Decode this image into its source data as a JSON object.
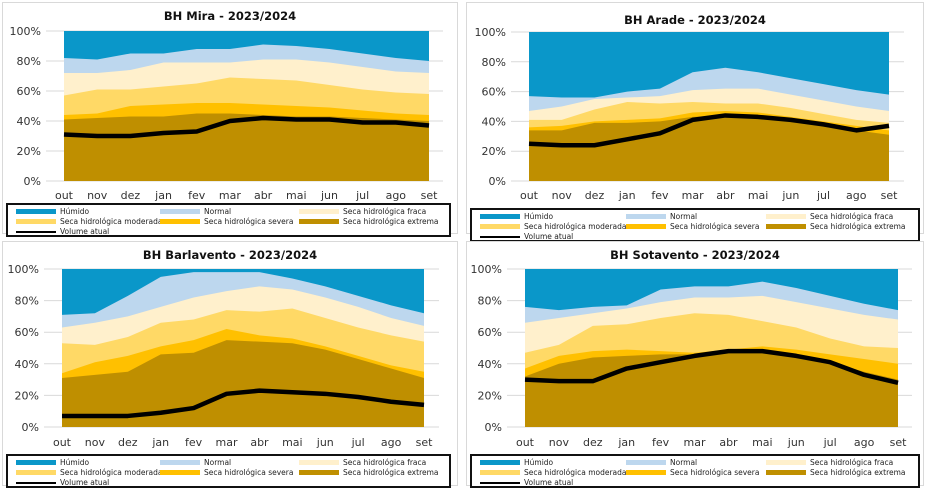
{
  "colors": {
    "humido": "#0A97C9",
    "normal": "#BDD7EE",
    "fraca": "#FFF0CC",
    "moderada": "#FFD966",
    "severa": "#FFC000",
    "extrema": "#BF8F00",
    "volume": "#000000",
    "grid": "#D9D9D9"
  },
  "legend": {
    "humido": "Húmido",
    "normal": "Normal",
    "fraca": "Seca hidrológica fraca",
    "moderada": "Seca hidrológica moderada",
    "severa": "Seca hidrológica severa",
    "extrema": "Seca hidrológica extrema",
    "volume": "Volume atual"
  },
  "chart_data": [
    {
      "type": "area",
      "title": "BH Mira - 2023/2024",
      "categories": [
        "out",
        "nov",
        "dez",
        "jan",
        "fev",
        "mar",
        "abr",
        "mai",
        "jun",
        "jul",
        "ago",
        "set"
      ],
      "yticks": [
        "0%",
        "20%",
        "40%",
        "60%",
        "80%",
        "100%"
      ],
      "ylim": [
        0,
        100
      ],
      "grid": true,
      "legend_position": "bottom",
      "series": [
        {
          "name": "Seca hidrológica extrema",
          "key": "extrema",
          "upper": [
            41,
            42,
            43,
            43,
            45,
            45,
            44,
            43,
            43,
            42,
            41,
            40
          ]
        },
        {
          "name": "Seca hidrológica severa",
          "key": "severa",
          "upper": [
            44,
            45,
            50,
            51,
            52,
            52,
            51,
            50,
            49,
            47,
            45,
            44
          ]
        },
        {
          "name": "Seca hidrológica moderada",
          "key": "moderada",
          "upper": [
            57,
            61,
            61,
            63,
            65,
            69,
            68,
            67,
            64,
            61,
            59,
            58
          ]
        },
        {
          "name": "Seca hidrológica fraca",
          "key": "fraca",
          "upper": [
            72,
            72,
            74,
            79,
            79,
            79,
            81,
            81,
            79,
            76,
            73,
            72
          ]
        },
        {
          "name": "Normal",
          "key": "normal",
          "upper": [
            82,
            81,
            85,
            85,
            88,
            88,
            91,
            90,
            88,
            85,
            82,
            80
          ]
        },
        {
          "name": "Húmido",
          "key": "humido",
          "upper": [
            100,
            100,
            100,
            100,
            100,
            100,
            100,
            100,
            100,
            100,
            100,
            100
          ]
        }
      ],
      "volume": [
        31,
        30,
        30,
        32,
        33,
        40,
        42,
        41,
        41,
        39,
        39,
        37
      ]
    },
    {
      "type": "area",
      "title": "BH Arade - 2023/2024",
      "categories": [
        "out",
        "nov",
        "dez",
        "jan",
        "fev",
        "mar",
        "abr",
        "mai",
        "jun",
        "jul",
        "ago",
        "set"
      ],
      "yticks": [
        "0%",
        "20%",
        "40%",
        "60%",
        "80%",
        "100%"
      ],
      "ylim": [
        0,
        100
      ],
      "grid": true,
      "legend_position": "bottom",
      "series": [
        {
          "name": "Seca hidrológica extrema",
          "key": "extrema",
          "upper": [
            34,
            34,
            39,
            39,
            40,
            43,
            44,
            43,
            40,
            37,
            34,
            31
          ]
        },
        {
          "name": "Seca hidrológica severa",
          "key": "severa",
          "upper": [
            36,
            37,
            40,
            41,
            42,
            46,
            47,
            46,
            43,
            40,
            37,
            34
          ]
        },
        {
          "name": "Seca hidrológica moderada",
          "key": "moderada",
          "upper": [
            41,
            41,
            48,
            53,
            52,
            53,
            52,
            52,
            49,
            45,
            41,
            39
          ]
        },
        {
          "name": "Seca hidrológica fraca",
          "key": "fraca",
          "upper": [
            47,
            50,
            55,
            56,
            57,
            61,
            62,
            62,
            58,
            54,
            50,
            47
          ]
        },
        {
          "name": "Normal",
          "key": "normal",
          "upper": [
            57,
            56,
            56,
            60,
            62,
            73,
            76,
            73,
            69,
            65,
            61,
            58
          ]
        },
        {
          "name": "Húmido",
          "key": "humido",
          "upper": [
            100,
            100,
            100,
            100,
            100,
            100,
            100,
            100,
            100,
            100,
            100,
            100
          ]
        }
      ],
      "volume": [
        25,
        24,
        24,
        28,
        32,
        41,
        44,
        43,
        41,
        38,
        34,
        37
      ]
    },
    {
      "type": "area",
      "title": "BH Barlavento - 2023/2024",
      "categories": [
        "out",
        "nov",
        "dez",
        "jan",
        "fev",
        "mar",
        "abr",
        "mai",
        "jun",
        "jul",
        "ago",
        "set"
      ],
      "yticks": [
        "0%",
        "20%",
        "40%",
        "60%",
        "80%",
        "100%"
      ],
      "ylim": [
        0,
        100
      ],
      "grid": true,
      "legend_position": "bottom",
      "series": [
        {
          "name": "Seca hidrológica extrema",
          "key": "extrema",
          "upper": [
            31,
            33,
            35,
            46,
            47,
            55,
            54,
            53,
            49,
            43,
            37,
            31
          ]
        },
        {
          "name": "Seca hidrológica severa",
          "key": "severa",
          "upper": [
            34,
            41,
            45,
            51,
            55,
            62,
            58,
            56,
            51,
            45,
            39,
            35
          ]
        },
        {
          "name": "Seca hidrológica moderada",
          "key": "moderada",
          "upper": [
            53,
            52,
            57,
            66,
            68,
            74,
            73,
            75,
            69,
            63,
            58,
            54
          ]
        },
        {
          "name": "Seca hidrológica fraca",
          "key": "fraca",
          "upper": [
            63,
            66,
            70,
            76,
            82,
            86,
            89,
            87,
            82,
            76,
            69,
            64
          ]
        },
        {
          "name": "Normal",
          "key": "normal",
          "upper": [
            71,
            72,
            83,
            95,
            98,
            98,
            98,
            94,
            89,
            83,
            77,
            72
          ]
        },
        {
          "name": "Húmido",
          "key": "humido",
          "upper": [
            100,
            100,
            100,
            100,
            100,
            100,
            100,
            100,
            100,
            100,
            100,
            100
          ]
        }
      ],
      "volume": [
        7,
        7,
        7,
        9,
        12,
        21,
        23,
        22,
        21,
        19,
        16,
        14
      ]
    },
    {
      "type": "area",
      "title": "BH Sotavento - 2023/2024",
      "categories": [
        "out",
        "nov",
        "dez",
        "jan",
        "fev",
        "mar",
        "abr",
        "mai",
        "jun",
        "jul",
        "ago",
        "set"
      ],
      "yticks": [
        "0%",
        "20%",
        "40%",
        "60%",
        "80%",
        "100%"
      ],
      "ylim": [
        0,
        100
      ],
      "grid": true,
      "legend_position": "bottom",
      "series": [
        {
          "name": "Seca hidrológica extrema",
          "key": "extrema",
          "upper": [
            32,
            40,
            44,
            45,
            46,
            46,
            47,
            47,
            45,
            41,
            35,
            30
          ]
        },
        {
          "name": "Seca hidrológica severa",
          "key": "severa",
          "upper": [
            37,
            45,
            48,
            49,
            48,
            47,
            49,
            51,
            49,
            46,
            43,
            40
          ]
        },
        {
          "name": "Seca hidrológica moderada",
          "key": "moderada",
          "upper": [
            47,
            52,
            64,
            65,
            69,
            72,
            71,
            67,
            63,
            56,
            51,
            50
          ]
        },
        {
          "name": "Seca hidrológica fraca",
          "key": "fraca",
          "upper": [
            66,
            69,
            72,
            75,
            79,
            82,
            82,
            83,
            79,
            75,
            71,
            68
          ]
        },
        {
          "name": "Normal",
          "key": "normal",
          "upper": [
            76,
            74,
            76,
            77,
            87,
            89,
            89,
            92,
            88,
            83,
            78,
            74
          ]
        },
        {
          "name": "Húmido",
          "key": "humido",
          "upper": [
            100,
            100,
            100,
            100,
            100,
            100,
            100,
            100,
            100,
            100,
            100,
            100
          ]
        }
      ],
      "volume": [
        30,
        29,
        29,
        37,
        41,
        45,
        48,
        48,
        45,
        41,
        33,
        28
      ]
    }
  ]
}
